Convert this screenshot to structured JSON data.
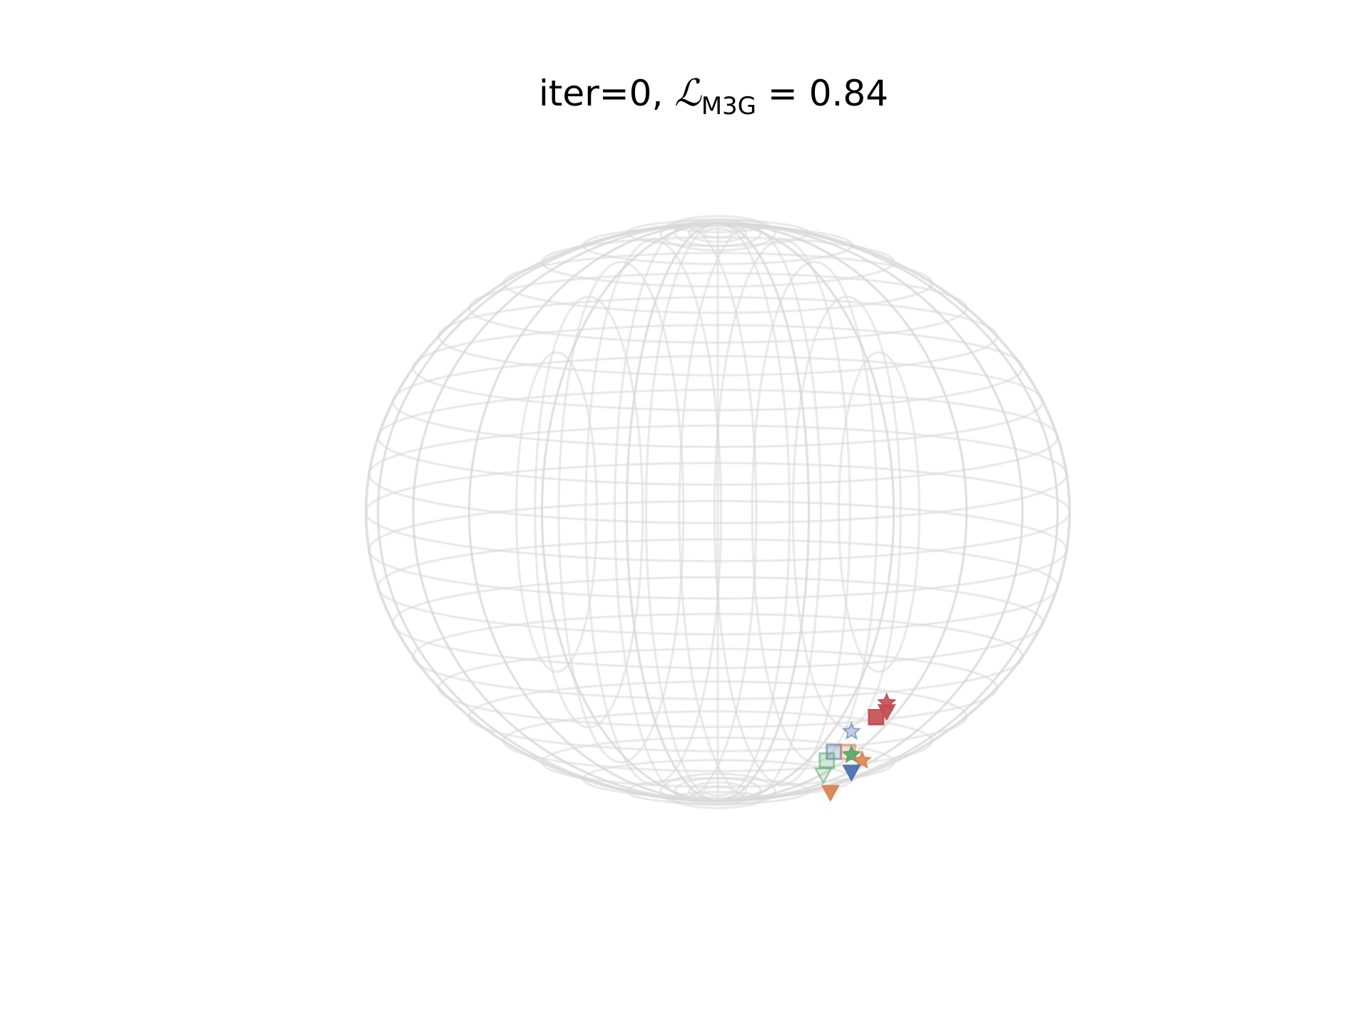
{
  "chart_data": {
    "type": "scatter",
    "title": {
      "prefix": "iter=0, ",
      "symbol": "ℒ",
      "subscript": "M3G",
      "suffix": " = 0.84"
    },
    "projection": "3d-unit-sphere",
    "sphere_wireframe": true,
    "grid": false,
    "axes_visible": false,
    "legend": "none",
    "series": [
      {
        "color": "#4c72b0",
        "marker": "star",
        "filled": false,
        "points": [
          {
            "x": 0.38,
            "y": 0.32,
            "z": -0.76
          }
        ]
      },
      {
        "color": "#c44e52",
        "marker": "star",
        "filled": true,
        "points": [
          {
            "x": 0.48,
            "y": 0.42,
            "z": -0.66
          }
        ]
      },
      {
        "color": "#4c72b0",
        "marker": "square",
        "filled": false,
        "points": [
          {
            "x": 0.33,
            "y": 0.26,
            "z": -0.83
          }
        ]
      },
      {
        "color": "#dd8452",
        "marker": "square",
        "filled": false,
        "points": [
          {
            "x": 0.37,
            "y": 0.31,
            "z": -0.83
          }
        ]
      },
      {
        "color": "#55a868",
        "marker": "star",
        "filled": true,
        "points": [
          {
            "x": 0.38,
            "y": 0.34,
            "z": -0.84
          }
        ]
      },
      {
        "color": "#c44e52",
        "marker": "square",
        "filled": true,
        "points": [
          {
            "x": 0.45,
            "y": 0.4,
            "z": -0.71
          }
        ]
      },
      {
        "color": "#c44e52",
        "marker": "triangle-down",
        "filled": true,
        "points": [
          {
            "x": 0.48,
            "y": 0.43,
            "z": -0.69
          }
        ]
      },
      {
        "color": "#55a868",
        "marker": "square",
        "filled": false,
        "points": [
          {
            "x": 0.31,
            "y": 0.25,
            "z": -0.86
          }
        ]
      },
      {
        "color": "#dd8452",
        "marker": "star",
        "filled": true,
        "points": [
          {
            "x": 0.41,
            "y": 0.36,
            "z": -0.86
          }
        ]
      },
      {
        "color": "#55a868",
        "marker": "triangle-down",
        "filled": false,
        "points": [
          {
            "x": 0.3,
            "y": 0.24,
            "z": -0.91
          }
        ]
      },
      {
        "color": "#4c72b0",
        "marker": "triangle-down",
        "filled": true,
        "points": [
          {
            "x": 0.38,
            "y": 0.33,
            "z": -0.9
          }
        ]
      },
      {
        "color": "#dd8452",
        "marker": "triangle-down",
        "filled": true,
        "points": [
          {
            "x": 0.32,
            "y": 0.27,
            "z": -0.97
          }
        ]
      }
    ]
  }
}
